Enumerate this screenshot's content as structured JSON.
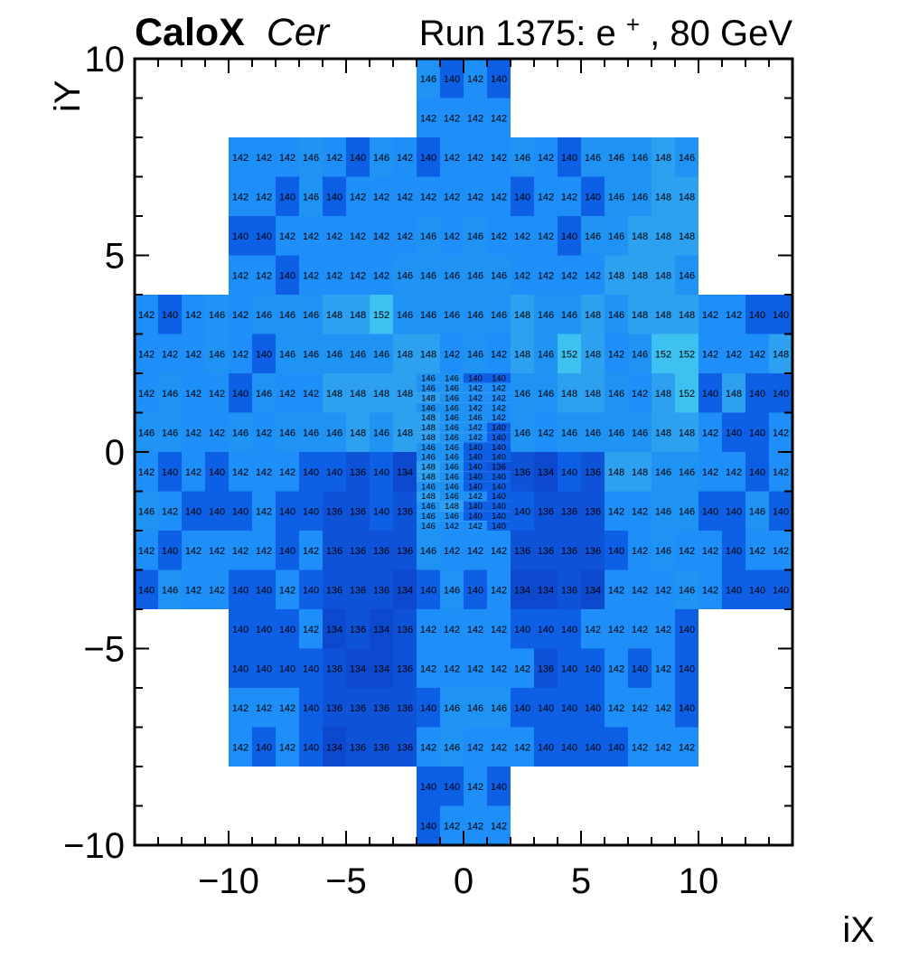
{
  "figure": {
    "title_bold": "CaloX",
    "title_italic": "Cer",
    "run_prefix": "Run 1375: e",
    "run_sup": "+",
    "run_suffix": ", 80 GeV"
  },
  "axes": {
    "x": {
      "title": "iX",
      "min": -14,
      "max": 14,
      "major": [
        -10,
        -5,
        0,
        5,
        10
      ],
      "labels": [
        "−10",
        "−5",
        "0",
        "5",
        "10"
      ]
    },
    "y": {
      "title": "iY",
      "min": -10,
      "max": 10,
      "major": [
        10,
        5,
        0,
        -5,
        -10
      ],
      "labels": [
        "10",
        "5",
        "0",
        "−5",
        "−10"
      ]
    }
  },
  "palette": {
    "134": "#0c49cf",
    "136": "#0e52d8",
    "140": "#0d5fe6",
    "142": "#1e8ef8",
    "146": "#1f93f3",
    "148": "#2da0f0",
    "152": "#3cc1f0"
  },
  "chart_data": {
    "type": "heatmap",
    "title": "Run 1375: e+, 80 GeV",
    "subtitle": "CaloX Cer",
    "xlabel": "iX",
    "ylabel": "iY",
    "xlim": [
      -14,
      14
    ],
    "ylim": [
      -10,
      10
    ],
    "zmin": 134,
    "zmax": 152,
    "grid": false,
    "legend": "none",
    "rows": [
      {
        "y": 9,
        "h": 1,
        "x0": -2,
        "v": [
          146,
          140,
          142,
          140
        ]
      },
      {
        "y": 8,
        "h": 1,
        "x0": -2,
        "v": [
          142,
          142,
          142,
          142
        ]
      },
      {
        "y": 7,
        "h": 1,
        "x0": -10,
        "v": [
          142,
          142,
          142,
          146,
          142,
          140,
          146,
          142,
          140,
          142,
          142,
          142,
          146,
          142,
          140,
          146,
          146,
          146,
          148,
          146
        ]
      },
      {
        "y": 6,
        "h": 1,
        "x0": -10,
        "v": [
          142,
          142,
          140,
          146,
          140,
          142,
          142,
          142,
          142,
          142,
          142,
          142,
          140,
          142,
          142,
          140,
          146,
          146,
          148,
          148
        ]
      },
      {
        "y": 5,
        "h": 1,
        "x0": -10,
        "v": [
          140,
          140,
          142,
          142,
          142,
          142,
          142,
          142,
          146,
          142,
          146,
          142,
          142,
          142,
          140,
          146,
          146,
          148,
          148,
          148
        ]
      },
      {
        "y": 4,
        "h": 1,
        "x0": -10,
        "v": [
          142,
          142,
          140,
          142,
          142,
          142,
          142,
          146,
          146,
          146,
          146,
          146,
          142,
          142,
          142,
          142,
          148,
          148,
          148,
          146
        ]
      },
      {
        "y": 3,
        "h": 1,
        "x0": -14,
        "v": [
          142,
          140,
          142,
          146,
          142,
          146,
          146,
          146,
          148,
          148,
          152,
          146,
          146,
          146,
          146,
          146,
          148,
          146,
          146,
          148,
          146,
          148,
          148,
          148,
          142,
          142,
          140,
          140
        ]
      },
      {
        "y": 2,
        "h": 1,
        "x0": -14,
        "v": [
          142,
          142,
          142,
          146,
          142,
          140,
          146,
          146,
          146,
          146,
          146,
          148,
          148,
          142,
          146,
          142,
          148,
          146,
          152,
          148,
          142,
          146,
          152,
          152,
          142,
          142,
          142,
          148
        ]
      },
      {
        "y": 1,
        "h": 1,
        "x0": -14,
        "v": [
          142,
          146,
          142,
          142,
          140,
          146,
          142,
          142,
          148,
          148,
          148,
          148
        ]
      },
      {
        "y": 1,
        "h": 1,
        "x0": 2,
        "v": [
          146,
          146,
          148,
          148,
          146,
          142,
          148,
          152,
          140,
          148,
          140,
          140
        ]
      },
      {
        "y": 0,
        "h": 1,
        "x0": -14,
        "v": [
          146,
          146,
          142,
          142,
          146,
          142,
          146,
          146,
          146,
          148,
          146,
          148
        ]
      },
      {
        "y": 0,
        "h": 1,
        "x0": 2,
        "v": [
          146,
          142,
          146,
          146,
          146,
          146,
          148,
          148,
          142,
          140,
          140,
          142
        ]
      },
      {
        "y": -1,
        "h": 1,
        "x0": -14,
        "v": [
          142,
          140,
          142,
          140,
          142,
          142,
          142,
          140,
          140,
          136,
          140,
          134
        ]
      },
      {
        "y": -1,
        "h": 1,
        "x0": 2,
        "v": [
          136,
          134,
          140,
          136,
          148,
          148,
          146,
          146,
          142,
          142,
          140,
          142
        ]
      },
      {
        "y": -2,
        "h": 1,
        "x0": -14,
        "v": [
          146,
          142,
          140,
          140,
          140,
          142,
          140,
          140,
          136,
          136,
          140,
          136
        ]
      },
      {
        "y": -2,
        "h": 1,
        "x0": 2,
        "v": [
          140,
          136,
          136,
          136,
          142,
          142,
          146,
          146,
          140,
          140,
          146,
          140
        ]
      },
      {
        "y": -3,
        "h": 1,
        "x0": -14,
        "v": [
          142,
          140,
          142,
          142,
          142,
          142,
          140,
          142,
          136,
          136,
          136,
          136,
          146,
          142,
          142,
          142,
          136,
          136,
          136,
          136,
          140,
          142,
          146,
          142,
          142,
          140,
          142,
          142
        ]
      },
      {
        "y": -4,
        "h": 1,
        "x0": -14,
        "v": [
          140,
          146,
          142,
          142,
          140,
          140,
          142,
          140,
          136,
          136,
          136,
          134,
          140,
          146,
          140,
          142,
          134,
          134,
          136,
          134,
          142,
          142,
          142,
          146,
          142,
          140,
          140,
          140
        ]
      },
      {
        "y": -5,
        "h": 1,
        "x0": -10,
        "v": [
          140,
          140,
          140,
          142,
          134,
          136,
          134,
          136,
          142,
          142,
          142,
          142,
          140,
          140,
          140,
          142,
          142,
          142,
          142,
          140
        ]
      },
      {
        "y": -6,
        "h": 1,
        "x0": -10,
        "v": [
          140,
          140,
          140,
          140,
          136,
          134,
          134,
          136,
          142,
          142,
          142,
          142,
          142,
          136,
          140,
          140,
          142,
          140,
          142,
          140
        ]
      },
      {
        "y": -7,
        "h": 1,
        "x0": -10,
        "v": [
          142,
          142,
          142,
          140,
          136,
          136,
          136,
          136,
          140,
          146,
          146,
          146,
          140,
          140,
          140,
          140,
          142,
          142,
          142,
          140
        ]
      },
      {
        "y": -8,
        "h": 1,
        "x0": -10,
        "v": [
          142,
          140,
          142,
          140,
          134,
          136,
          136,
          136,
          142,
          146,
          142,
          142,
          142,
          140,
          140,
          140,
          140,
          142,
          142,
          142
        ]
      },
      {
        "y": -9,
        "h": 1,
        "x0": -2,
        "v": [
          140,
          140,
          142,
          140
        ]
      },
      {
        "y": -10,
        "h": 1,
        "x0": -2,
        "v": [
          140,
          142,
          142,
          142
        ]
      },
      {
        "y": 1.75,
        "h": 0.25,
        "x0": -2,
        "v": [
          146,
          146,
          140,
          140
        ]
      },
      {
        "y": 1.5,
        "h": 0.25,
        "x0": -2,
        "v": [
          146,
          146,
          142,
          142
        ]
      },
      {
        "y": 1.25,
        "h": 0.25,
        "x0": -2,
        "v": [
          148,
          146,
          142,
          142
        ]
      },
      {
        "y": 1.0,
        "h": 0.25,
        "x0": -2,
        "v": [
          146,
          146,
          142,
          142
        ]
      },
      {
        "y": 0.75,
        "h": 0.25,
        "x0": -2,
        "v": [
          148,
          146,
          146,
          142
        ]
      },
      {
        "y": 0.5,
        "h": 0.25,
        "x0": -2,
        "v": [
          148,
          146,
          142,
          140
        ]
      },
      {
        "y": 0.25,
        "h": 0.25,
        "x0": -2,
        "v": [
          148,
          146,
          142,
          140
        ]
      },
      {
        "y": 0.0,
        "h": 0.25,
        "x0": -2,
        "v": [
          146,
          146,
          140,
          140
        ]
      },
      {
        "y": -0.25,
        "h": 0.25,
        "x0": -2,
        "v": [
          146,
          146,
          140,
          140
        ]
      },
      {
        "y": -0.5,
        "h": 0.25,
        "x0": -2,
        "v": [
          148,
          146,
          140,
          136
        ]
      },
      {
        "y": -0.75,
        "h": 0.25,
        "x0": -2,
        "v": [
          148,
          146,
          140,
          140
        ]
      },
      {
        "y": -1.0,
        "h": 0.25,
        "x0": -2,
        "v": [
          146,
          146,
          140,
          140
        ]
      },
      {
        "y": -1.25,
        "h": 0.25,
        "x0": -2,
        "v": [
          148,
          146,
          142,
          140
        ]
      },
      {
        "y": -1.5,
        "h": 0.25,
        "x0": -2,
        "v": [
          146,
          148,
          140,
          140
        ]
      },
      {
        "y": -1.75,
        "h": 0.25,
        "x0": -2,
        "v": [
          146,
          146,
          140,
          140
        ]
      },
      {
        "y": -2.0,
        "h": 0.25,
        "x0": -2,
        "v": [
          146,
          142,
          142,
          140
        ]
      }
    ]
  }
}
